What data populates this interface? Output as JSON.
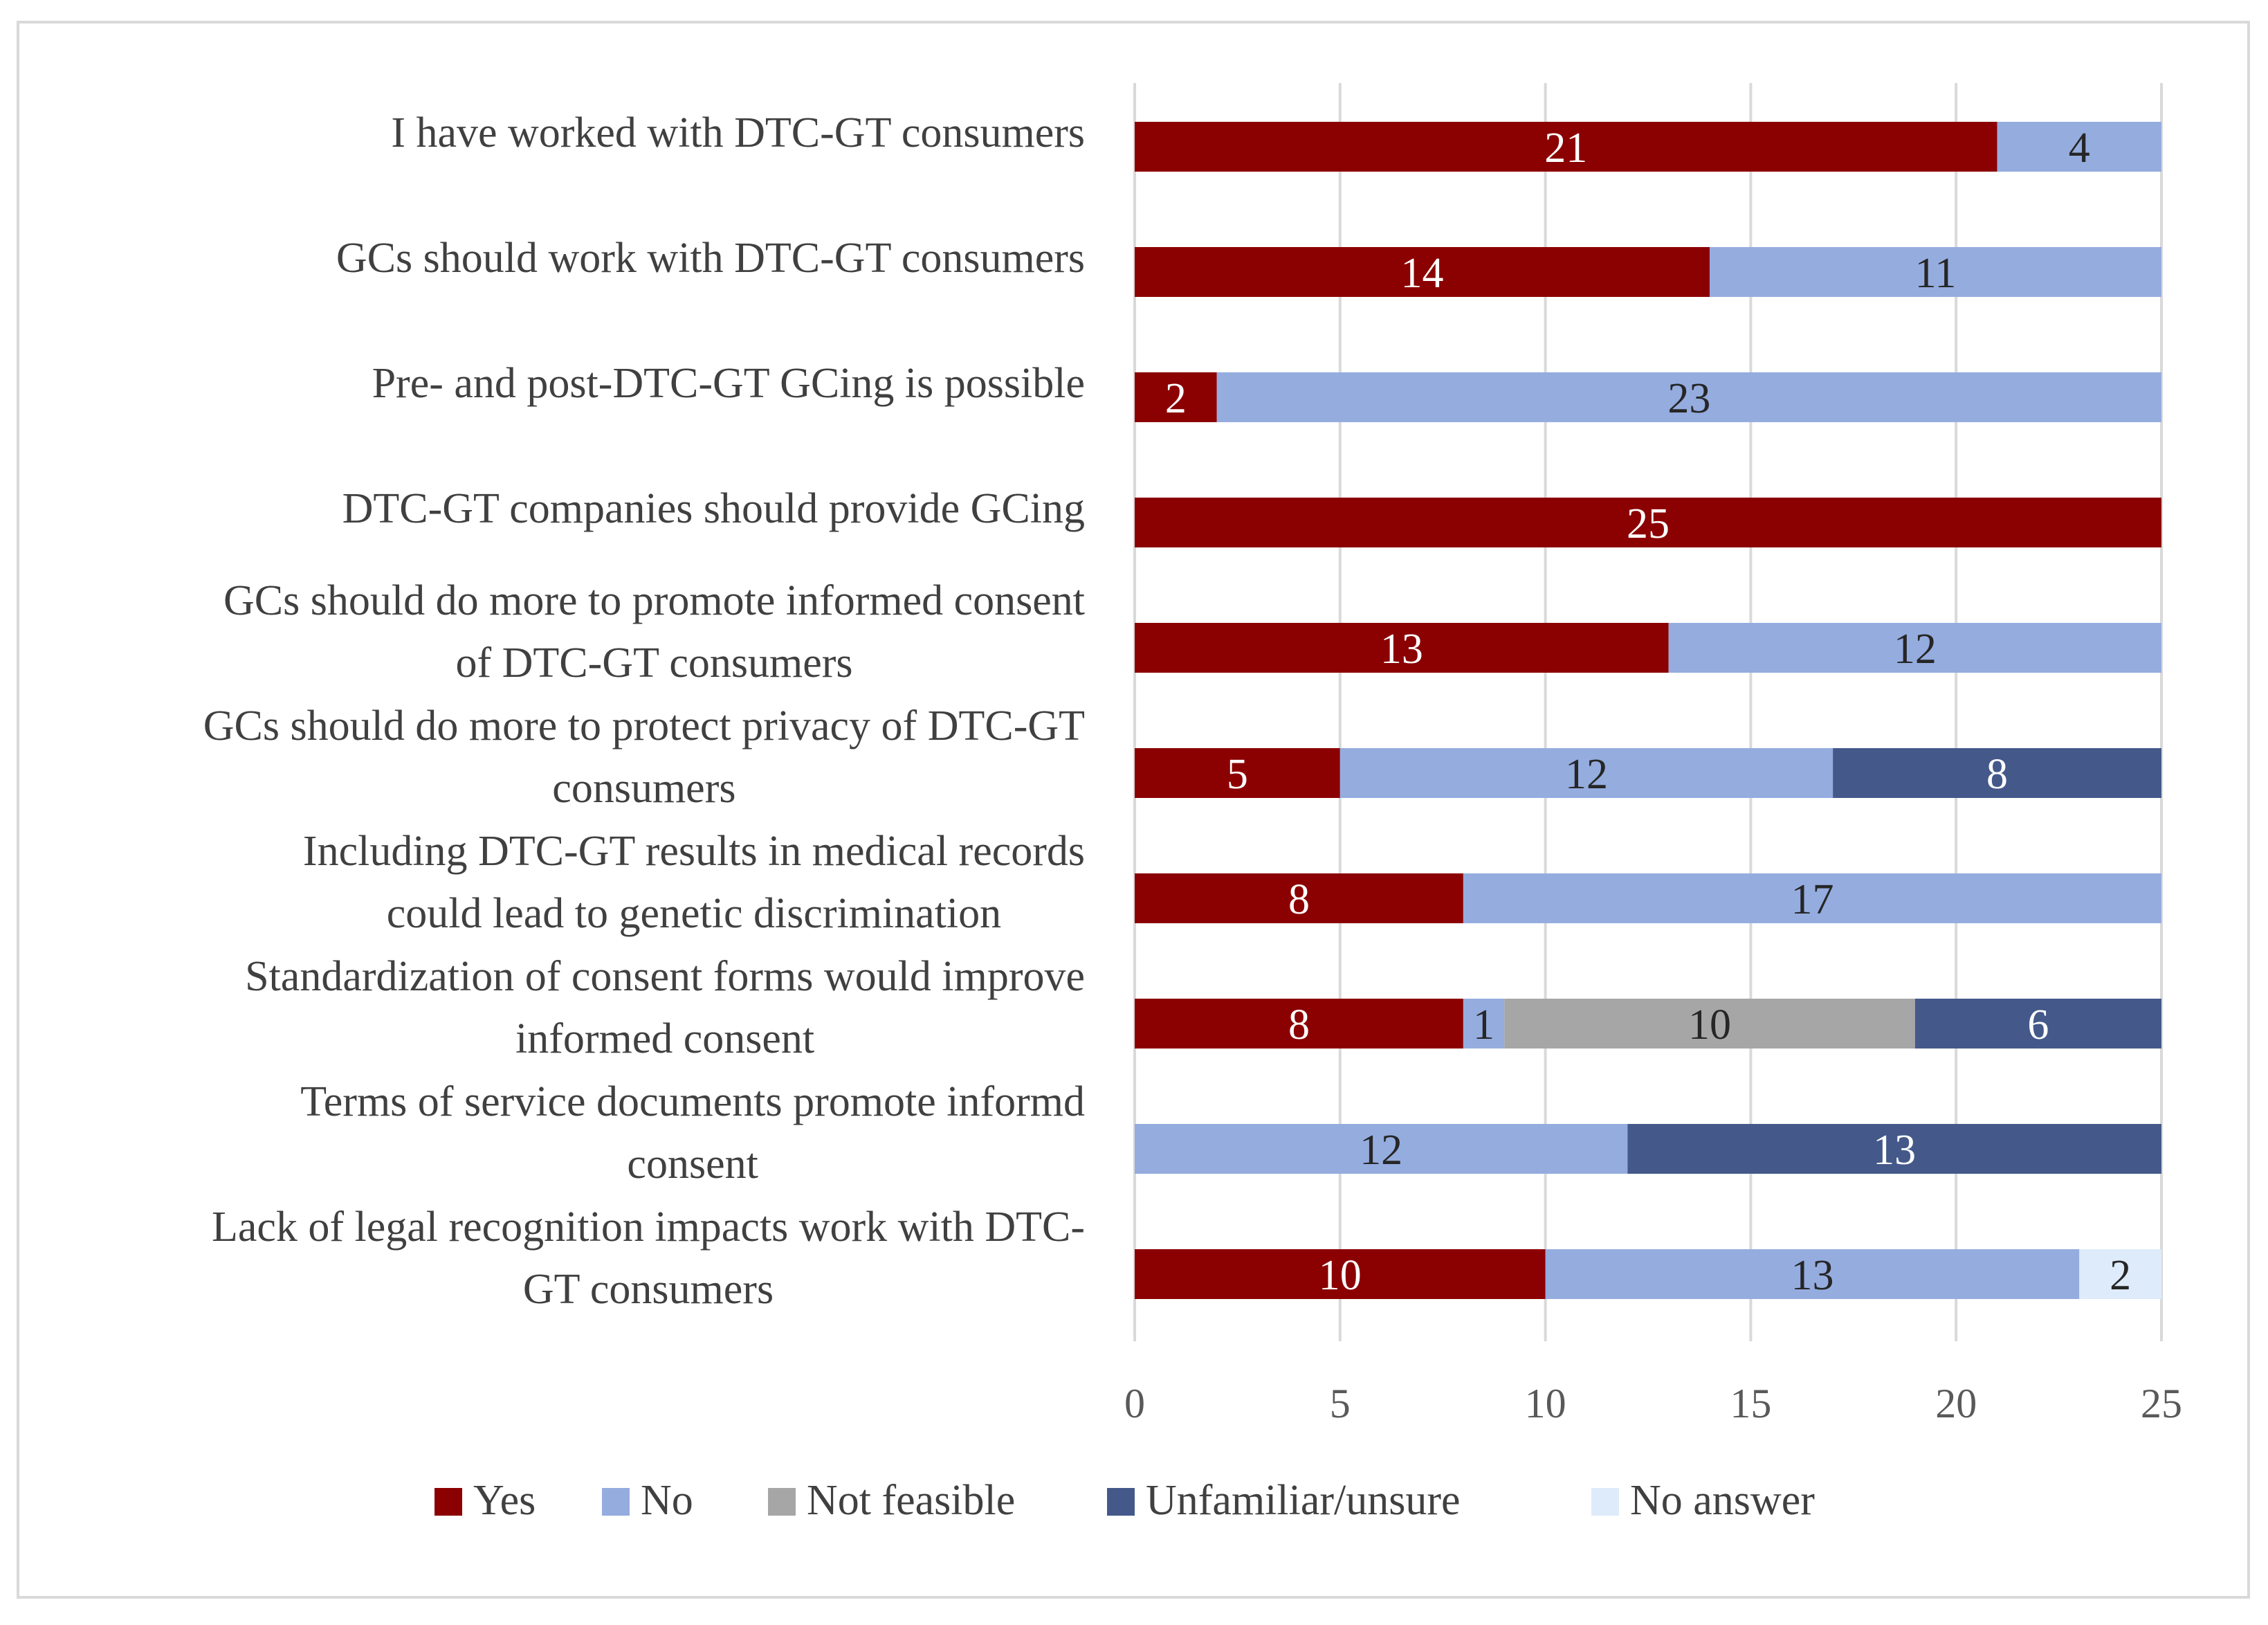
{
  "chart_data": {
    "type": "bar",
    "orientation": "horizontal",
    "stacked": true,
    "title": "",
    "xlabel": "",
    "ylabel": "",
    "xlim": [
      0,
      25
    ],
    "x_ticks": [
      "0",
      "5",
      "10",
      "15",
      "20",
      "25"
    ],
    "grid": true,
    "legend_position": "bottom",
    "categories": [
      [
        "I have worked with DTC-GT consumers"
      ],
      [
        "GCs should  work with DTC-GT consumers"
      ],
      [
        "Pre- and post-DTC-GT GCing is possible"
      ],
      [
        "DTC-GT companies should provide GCing"
      ],
      [
        "GCs should do more to promote informed consent",
        "of DTC-GT consumers"
      ],
      [
        "GCs should do more to protect privacy of DTC-GT",
        "consumers"
      ],
      [
        "Including DTC-GT results in medical records",
        "could lead to genetic discrimination"
      ],
      [
        "Standardization of consent forms would improve",
        "informed consent"
      ],
      [
        "Terms of service documents promote informd",
        "consent"
      ],
      [
        "Lack of legal recognition impacts work with DTC-",
        "GT consumers"
      ]
    ],
    "series": [
      {
        "name": "Yes",
        "color": "#8b0000",
        "label_color": "#ffffff",
        "values": [
          21,
          14,
          2,
          25,
          13,
          5,
          8,
          8,
          0,
          10
        ]
      },
      {
        "name": "No",
        "color": "#95acdf",
        "label_color": "#262626",
        "values": [
          4,
          11,
          23,
          0,
          12,
          12,
          17,
          1,
          12,
          13
        ]
      },
      {
        "name": "Not feasible",
        "color": "#a6a6a6",
        "label_color": "#262626",
        "values": [
          0,
          0,
          0,
          0,
          0,
          0,
          0,
          10,
          0,
          0
        ]
      },
      {
        "name": "Unfamiliar/unsure",
        "color": "#44598a",
        "label_color": "#ffffff",
        "values": [
          0,
          0,
          0,
          0,
          0,
          8,
          0,
          6,
          13,
          0
        ]
      },
      {
        "name": "No answer",
        "color": "#deebfa",
        "label_color": "#262626",
        "values": [
          0,
          0,
          0,
          0,
          0,
          0,
          0,
          0,
          0,
          2
        ]
      }
    ]
  }
}
